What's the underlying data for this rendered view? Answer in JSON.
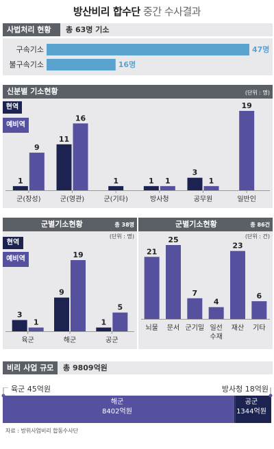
{
  "title": {
    "bold": "방산비리 합수단",
    "rest": "중간 수사결과"
  },
  "colors": {
    "current": "#1c2350",
    "reserve": "#55519e",
    "cyan": "#5aa3cf",
    "header_dark": "#5b6067",
    "panel": "#e9e9ec"
  },
  "prosecution": {
    "header": "사법처리 현황",
    "total": "총 63명 기소",
    "chart_data": {
      "type": "bar",
      "orientation": "horizontal",
      "categories": [
        "구속기소",
        "불구속기소"
      ],
      "values": [
        47,
        16
      ],
      "value_labels": [
        "47명",
        "16명"
      ],
      "xlim": [
        0,
        47
      ]
    }
  },
  "by_status": {
    "header": "신분별 기소현황",
    "unit": "(단위 : 명)",
    "legend": [
      "현역",
      "예비역"
    ],
    "chart_data": {
      "type": "bar",
      "categories": [
        "군(장성)",
        "군(영관)",
        "군(기타)",
        "방사청",
        "공무원",
        "일반인"
      ],
      "series": [
        {
          "name": "현역",
          "values": [
            1,
            11,
            1,
            1,
            3,
            null
          ]
        },
        {
          "name": "예비역",
          "values": [
            9,
            16,
            null,
            1,
            1,
            19
          ]
        }
      ],
      "ylim": [
        0,
        19
      ]
    }
  },
  "by_branch": {
    "header": "군별기소현황",
    "total": "총 38명",
    "unit": "(단위 : 명)",
    "legend": [
      "현역",
      "예비역"
    ],
    "chart_data": {
      "type": "bar",
      "categories": [
        "육군",
        "해군",
        "공군"
      ],
      "series": [
        {
          "name": "현역",
          "values": [
            3,
            9,
            1
          ]
        },
        {
          "name": "예비역",
          "values": [
            1,
            19,
            5
          ]
        }
      ],
      "ylim": [
        0,
        19
      ]
    }
  },
  "by_charge": {
    "header": "군별기소현황",
    "total": "총 86건",
    "unit": "(단위 : 건)",
    "chart_data": {
      "type": "bar",
      "categories": [
        "뇌물",
        "문서",
        "군기밀",
        "일선\n수재",
        "재산",
        "기타"
      ],
      "values": [
        21,
        25,
        7,
        4,
        23,
        6
      ],
      "ylim": [
        0,
        25
      ]
    }
  },
  "scale": {
    "header": "비리 사업 규모",
    "total": "총 9809억원",
    "chart_data": {
      "type": "bar",
      "orientation": "stacked-horizontal",
      "categories": [
        "육군",
        "해군",
        "방사청",
        "공군"
      ],
      "values": [
        45,
        8402,
        18,
        1344
      ],
      "unit": "억원"
    },
    "army_label": "육군 45억원",
    "dapa_label": "방사청 18억원",
    "navy_name": "해군",
    "navy_amount": "8402억원",
    "airforce_name": "공군",
    "airforce_amount": "1344억원"
  },
  "source": "자료 : 방위사업비리 합동수사단"
}
